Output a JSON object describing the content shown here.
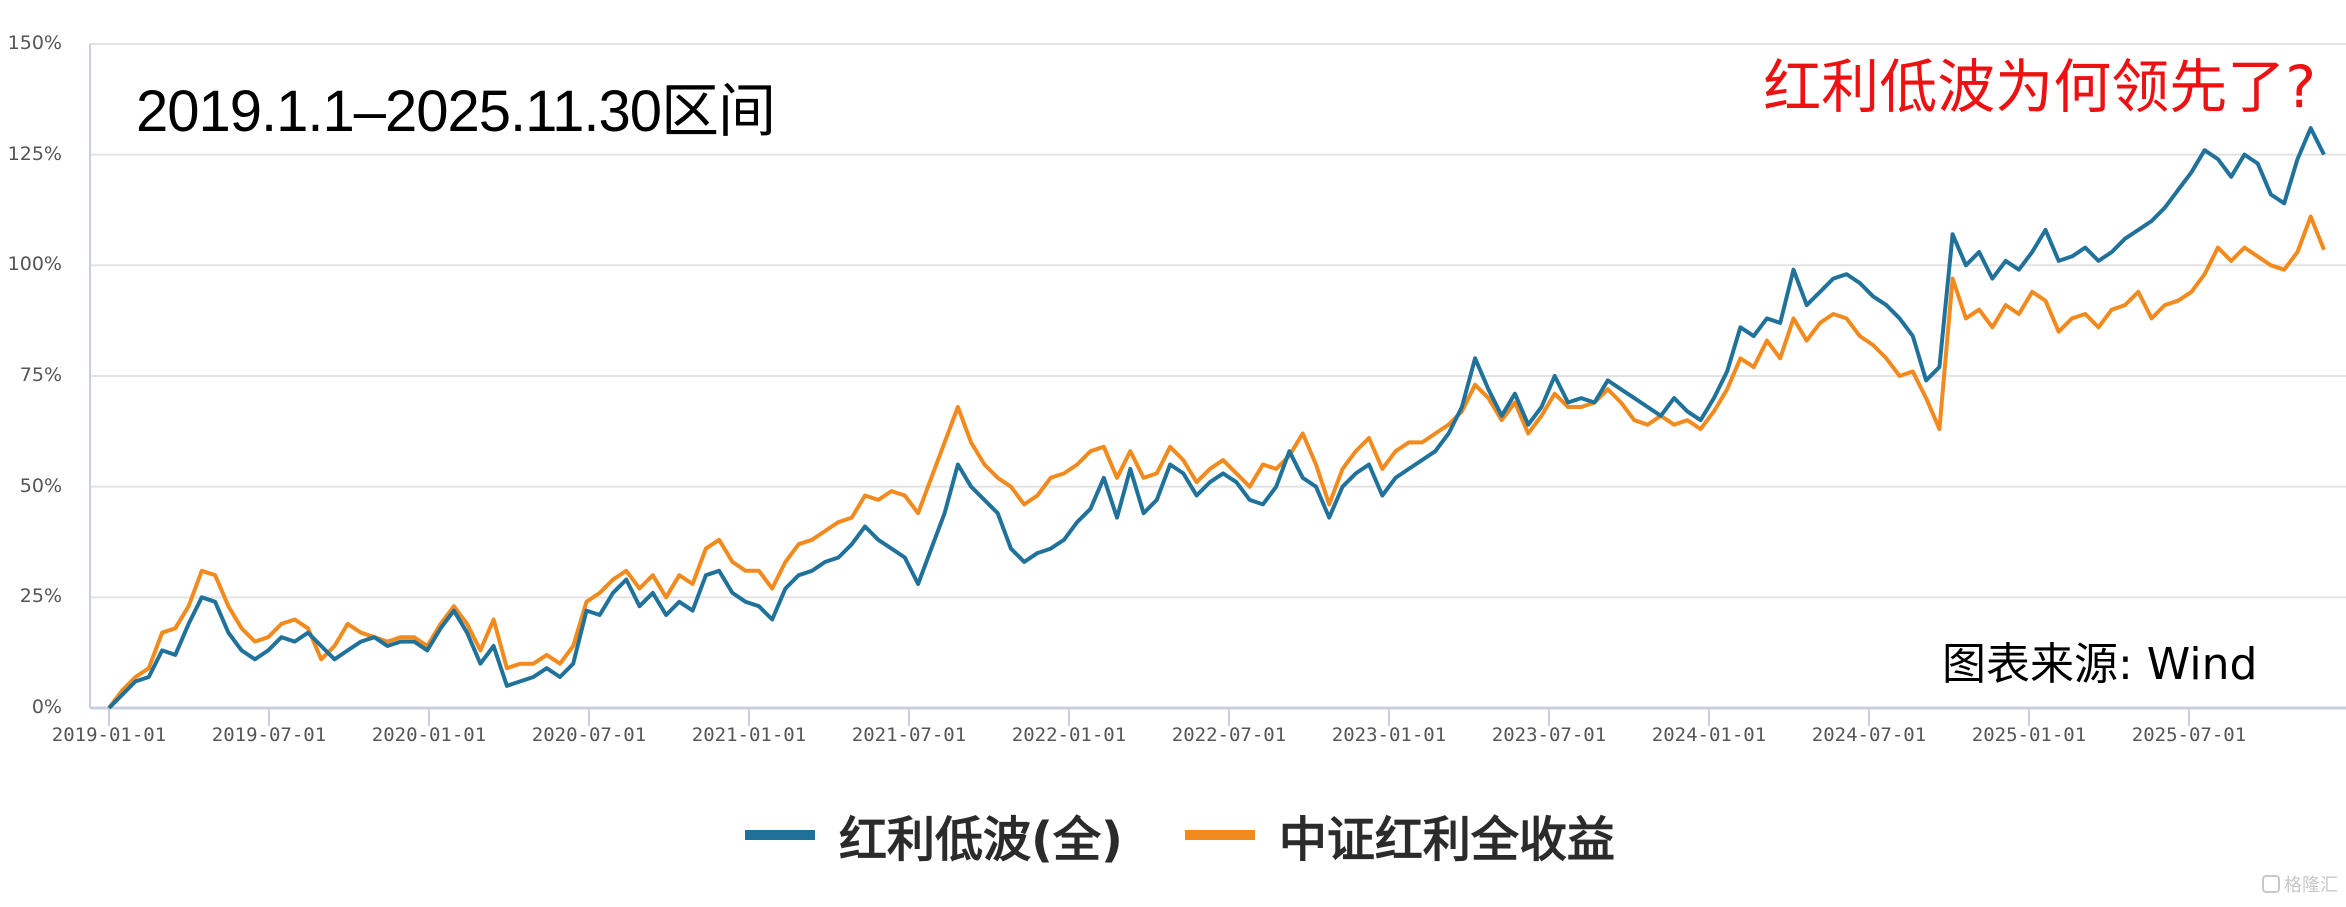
{
  "chart_data": {
    "type": "line",
    "title": "2019.1.1-2025.11.30区间",
    "annotation": "红利低波为何领先了?",
    "source": "图表来源:  Wind",
    "xlabel": "",
    "ylabel": "",
    "ylim": [
      0,
      150
    ],
    "yticks": [
      "0%",
      "25%",
      "50%",
      "75%",
      "100%",
      "125%",
      "150%"
    ],
    "ytick_values": [
      0,
      25,
      50,
      75,
      100,
      125,
      150
    ],
    "xticks": [
      "2019-01-01",
      "2019-07-01",
      "2020-01-01",
      "2020-07-01",
      "2021-01-01",
      "2021-07-01",
      "2022-01-01",
      "2022-07-01",
      "2023-01-01",
      "2023-07-01",
      "2024-01-01",
      "2024-07-01",
      "2025-01-01",
      "2025-07-01"
    ],
    "x_start": "2019-01-01",
    "x_end": "2025-11-30",
    "x_step": "half-month",
    "grid": true,
    "legend_position": "bottom",
    "series": [
      {
        "name": "红利低波(全)",
        "color": "#20729b",
        "values": [
          0,
          3,
          6,
          7,
          13,
          12,
          19,
          25,
          24,
          17,
          13,
          11,
          13,
          16,
          15,
          17,
          14,
          11,
          13,
          15,
          16,
          14,
          15,
          15,
          13,
          18,
          22,
          17,
          10,
          14,
          5,
          6,
          7,
          9,
          7,
          10,
          22,
          21,
          26,
          29,
          23,
          26,
          21,
          24,
          22,
          30,
          31,
          26,
          24,
          23,
          20,
          27,
          30,
          31,
          33,
          34,
          37,
          41,
          38,
          36,
          34,
          28,
          36,
          44,
          55,
          50,
          47,
          44,
          36,
          33,
          35,
          36,
          38,
          42,
          45,
          52,
          43,
          54,
          44,
          47,
          55,
          53,
          48,
          51,
          53,
          51,
          47,
          46,
          50,
          58,
          52,
          50,
          43,
          50,
          53,
          55,
          48,
          52,
          54,
          56,
          58,
          62,
          68,
          79,
          72,
          66,
          71,
          64,
          68,
          75,
          69,
          70,
          69,
          74,
          72,
          70,
          68,
          66,
          70,
          67,
          65,
          70,
          76,
          86,
          84,
          88,
          87,
          99,
          91,
          94,
          97,
          98,
          96,
          93,
          91,
          88,
          84,
          74,
          77,
          107,
          100,
          103,
          97,
          101,
          99,
          103,
          108,
          101,
          102,
          104,
          101,
          103,
          106,
          108,
          110,
          113,
          117,
          121,
          126,
          124,
          120,
          125,
          123,
          116,
          114,
          124,
          131,
          125
        ]
      },
      {
        "name": "中证红利全收益",
        "color": "#f28a1e",
        "values": [
          0,
          4,
          7,
          9,
          17,
          18,
          23,
          31,
          30,
          23,
          18,
          15,
          16,
          19,
          20,
          18,
          11,
          14,
          19,
          17,
          16,
          15,
          16,
          16,
          14,
          19,
          23,
          19,
          13,
          20,
          9,
          10,
          10,
          12,
          10,
          14,
          24,
          26,
          29,
          31,
          27,
          30,
          25,
          30,
          28,
          36,
          38,
          33,
          31,
          31,
          27,
          33,
          37,
          38,
          40,
          42,
          43,
          48,
          47,
          49,
          48,
          44,
          52,
          60,
          68,
          60,
          55,
          52,
          50,
          46,
          48,
          52,
          53,
          55,
          58,
          59,
          52,
          58,
          52,
          53,
          59,
          56,
          51,
          54,
          56,
          53,
          50,
          55,
          54,
          57,
          62,
          55,
          46,
          54,
          58,
          61,
          54,
          58,
          60,
          60,
          62,
          64,
          67,
          73,
          70,
          65,
          69,
          62,
          66,
          71,
          68,
          68,
          69,
          72,
          69,
          65,
          64,
          66,
          64,
          65,
          63,
          67,
          72,
          79,
          77,
          83,
          79,
          88,
          83,
          87,
          89,
          88,
          84,
          82,
          79,
          75,
          76,
          70,
          63,
          97,
          88,
          90,
          86,
          91,
          89,
          94,
          92,
          85,
          88,
          89,
          86,
          90,
          91,
          94,
          88,
          91,
          92,
          94,
          98,
          104,
          101,
          104,
          102,
          100,
          99,
          103,
          111,
          103.5
        ]
      }
    ]
  },
  "header": {
    "period_label": "2019.1.1–2025.11.30区间",
    "question_label": "红利低波为何领先了?"
  },
  "footer": {
    "source_label": "图表来源:  Wind",
    "watermark": "格隆汇"
  },
  "legend": {
    "items": [
      {
        "label": "红利低波(全)",
        "color": "#20729b"
      },
      {
        "label": "中证红利全收益",
        "color": "#f28a1e"
      }
    ]
  }
}
